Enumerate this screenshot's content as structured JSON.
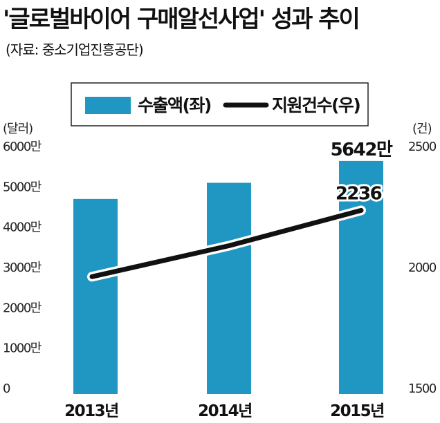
{
  "header": {
    "title": "'글로벌바이어 구매알선사업' 성과 추이",
    "source": "(자료: 중소기업진흥공단)"
  },
  "colors": {
    "bar": "#1f97c2",
    "line": "#111111",
    "text": "#111111"
  },
  "chart_data": {
    "type": "bar",
    "title": "'글로벌바이어 구매알선사업' 성과 추이",
    "categories": [
      "2013년",
      "2014년",
      "2015년"
    ],
    "series": [
      {
        "name": "수출액(좌)",
        "type": "bar",
        "axis": "left",
        "values": [
          4700,
          5100,
          5642
        ]
      },
      {
        "name": "지원건수(우)",
        "type": "line",
        "axis": "right",
        "values": [
          1962,
          2090,
          2236
        ]
      }
    ],
    "left_axis": {
      "unit": "(달러)",
      "ticks": [
        "0",
        "1000만",
        "2000만",
        "3000만",
        "4000만",
        "5000만",
        "6000만"
      ],
      "range": [
        0,
        6000
      ]
    },
    "right_axis": {
      "unit": "(건)",
      "ticks": [
        "1500",
        "2000",
        "2500"
      ],
      "range": [
        1500,
        2500
      ]
    },
    "data_labels": {
      "bar_2015": "5642만",
      "line_2015": "2236"
    },
    "legend_position": "top-right",
    "grid": false
  }
}
